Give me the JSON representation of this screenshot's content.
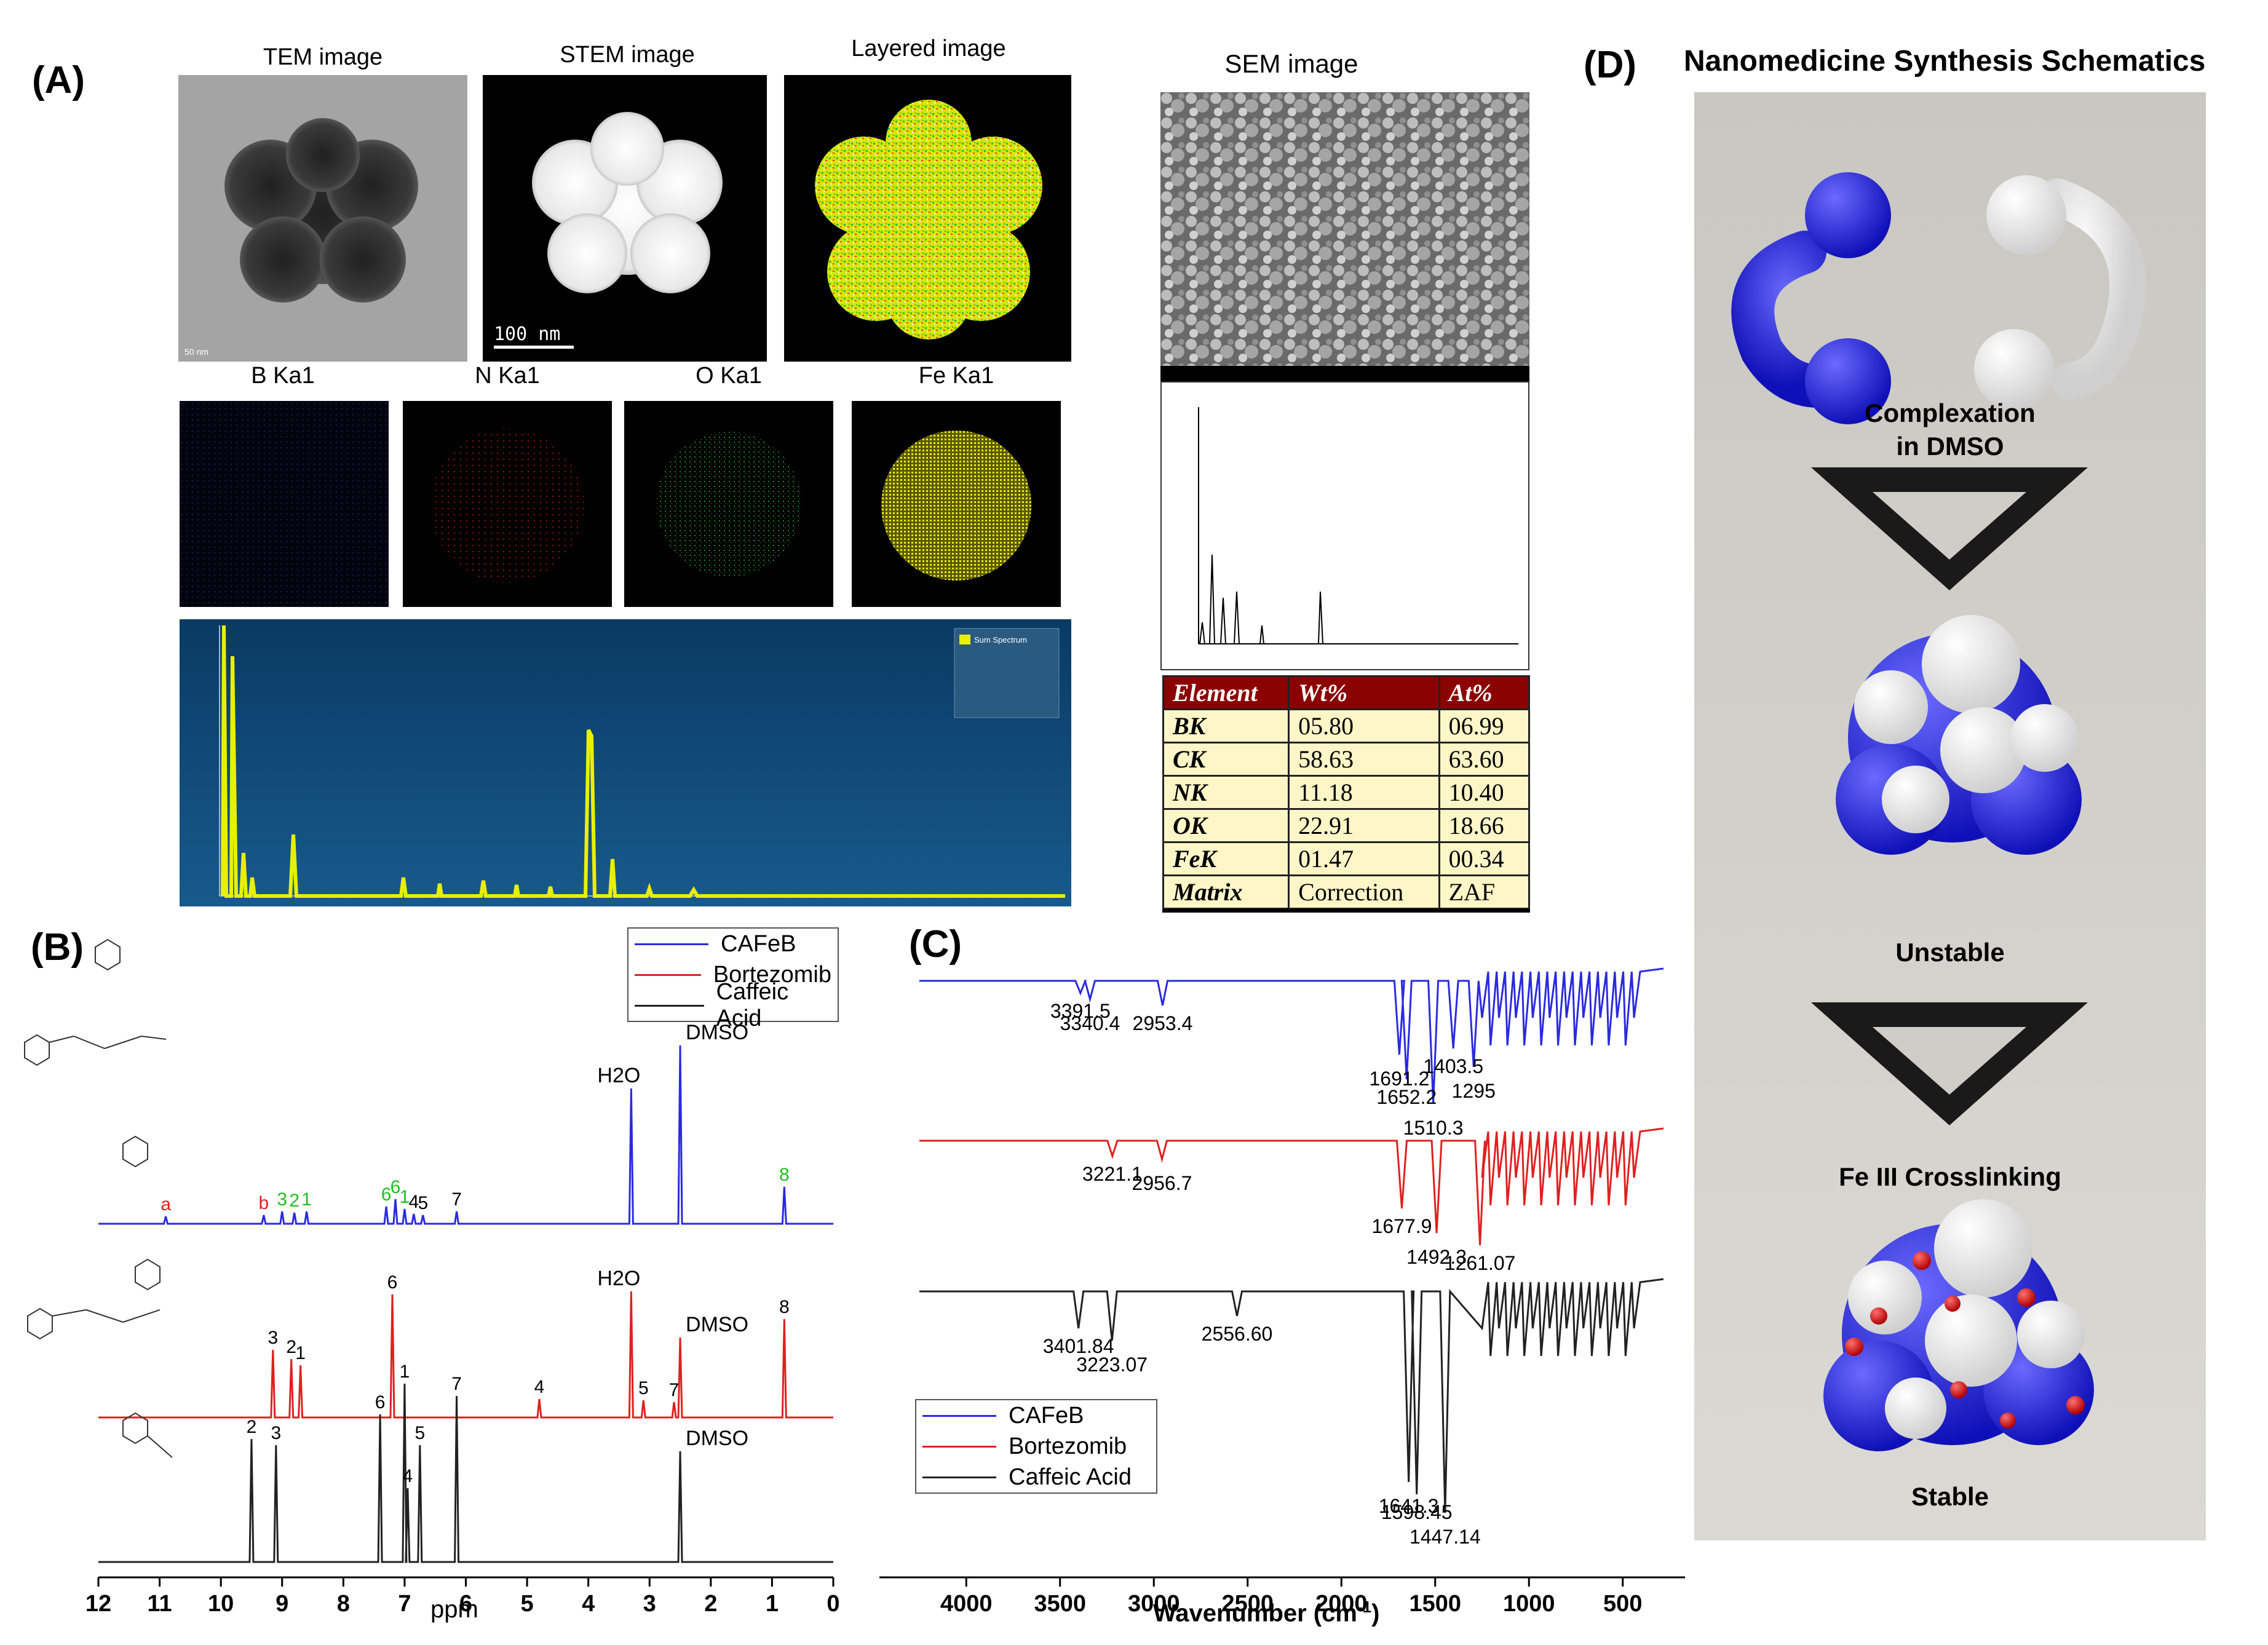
{
  "panels": {
    "A": "(A)",
    "B": "(B)",
    "C": "(C)",
    "D": "(D)"
  },
  "panelA": {
    "tem_title": "TEM image",
    "stem_title": "STEM image",
    "layered_title": "Layered image",
    "scale_bar": "100 nm",
    "map_titles": [
      "B Ka1",
      "N Ka1",
      "O Ka1",
      "Fe Ka1"
    ],
    "eds_legend": "Sum Spectrum"
  },
  "sem": {
    "title": "SEM image",
    "table_headers": [
      "Element",
      "Wt%",
      "At%"
    ],
    "rows": [
      {
        "el": "BK",
        "wt": "05.80",
        "at": "06.99"
      },
      {
        "el": "CK",
        "wt": "58.63",
        "at": "63.60"
      },
      {
        "el": "NK",
        "wt": "11.18",
        "at": "10.40"
      },
      {
        "el": "OK",
        "wt": "22.91",
        "at": "18.66"
      },
      {
        "el": "FeK",
        "wt": "01.47",
        "at": "00.34"
      },
      {
        "el": "Matrix",
        "wt": "Correction",
        "at": "ZAF"
      }
    ]
  },
  "panelD": {
    "title": "Nanomedicine Synthesis Schematics",
    "step1": "Complexation",
    "step1b": "in DMSO",
    "step2": "Unstable",
    "step3": "Fe III Crosslinking",
    "step4": "Stable"
  },
  "chart_data": [
    {
      "type": "line",
      "title": "",
      "xlabel": "ppm",
      "ylabel": "",
      "xlim": [
        12,
        0
      ],
      "x_ticks": [
        12,
        11,
        10,
        9,
        8,
        7,
        6,
        5,
        4,
        3,
        2,
        1,
        0
      ],
      "legend": [
        "CAFeB",
        "Bortezomib",
        "Caffeic  Acid"
      ],
      "series": [
        {
          "name": "CAFeB",
          "color": "#2a2ae0",
          "peaks": [
            {
              "x": 10.9,
              "label": "a"
            },
            {
              "x": 9.3,
              "label": "b"
            },
            {
              "x": 9.0,
              "label": "3"
            },
            {
              "x": 8.8,
              "label": "2"
            },
            {
              "x": 8.6,
              "label": "1"
            },
            {
              "x": 7.3,
              "label": "6"
            },
            {
              "x": 7.15,
              "label": "6"
            },
            {
              "x": 7.0,
              "label": "1"
            },
            {
              "x": 6.85,
              "label": "4"
            },
            {
              "x": 6.7,
              "label": "5"
            },
            {
              "x": 6.15,
              "label": "7"
            },
            {
              "x": 3.3,
              "label": "H2O"
            },
            {
              "x": 2.5,
              "label": "DMSO"
            },
            {
              "x": 0.8,
              "label": "8"
            }
          ]
        },
        {
          "name": "Bortezomib",
          "color": "#e02020",
          "peaks": [
            {
              "x": 9.15,
              "label": "3"
            },
            {
              "x": 8.85,
              "label": "2"
            },
            {
              "x": 8.7,
              "label": "1"
            },
            {
              "x": 7.2,
              "label": "6"
            },
            {
              "x": 4.8,
              "label": "4"
            },
            {
              "x": 3.3,
              "label": "H2O"
            },
            {
              "x": 3.1,
              "label": "5"
            },
            {
              "x": 2.6,
              "label": "7"
            },
            {
              "x": 2.5,
              "label": "DMSO"
            },
            {
              "x": 0.8,
              "label": "8"
            }
          ]
        },
        {
          "name": "Caffeic  Acid",
          "color": "#222222",
          "peaks": [
            {
              "x": 9.5,
              "label": "2"
            },
            {
              "x": 9.1,
              "label": "3"
            },
            {
              "x": 7.4,
              "label": "6"
            },
            {
              "x": 7.0,
              "label": "1"
            },
            {
              "x": 6.95,
              "label": "4"
            },
            {
              "x": 6.75,
              "label": "5"
            },
            {
              "x": 6.15,
              "label": "7"
            },
            {
              "x": 2.5,
              "label": "DMSO"
            }
          ]
        }
      ]
    },
    {
      "type": "line",
      "title": "",
      "xlabel": "Wavenumber (cm",
      "xlabel_sup": "-1",
      "xlabel_end": ")",
      "ylabel": "",
      "xlim": [
        4250,
        250
      ],
      "x_ticks": [
        4000,
        3500,
        3000,
        2500,
        2000,
        1500,
        1000,
        500
      ],
      "legend": [
        "CAFeB",
        "Bortezomib",
        "Caffeic  Acid"
      ],
      "series": [
        {
          "name": "CAFeB",
          "color": "#2a2ae0",
          "labels": [
            {
              "x": 3391.5,
              "text": "3391.5"
            },
            {
              "x": 3340.4,
              "text": "3340.4"
            },
            {
              "x": 2953.4,
              "text": "2953.4"
            },
            {
              "x": 1691.2,
              "text": "1691.2"
            },
            {
              "x": 1652.2,
              "text": "1652.2"
            },
            {
              "x": 1510.3,
              "text": "1510.3"
            },
            {
              "x": 1403.5,
              "text": "1403.5"
            },
            {
              "x": 1295,
              "text": "1295"
            }
          ]
        },
        {
          "name": "Bortezomib",
          "color": "#e02020",
          "labels": [
            {
              "x": 3221.1,
              "text": "3221.1"
            },
            {
              "x": 2956.7,
              "text": "2956.7"
            },
            {
              "x": 1677.9,
              "text": "1677.9"
            },
            {
              "x": 1492.3,
              "text": "1492.3"
            },
            {
              "x": 1261.07,
              "text": "1261.07"
            }
          ]
        },
        {
          "name": "Caffeic  Acid",
          "color": "#222222",
          "labels": [
            {
              "x": 3401.84,
              "text": "3401.84"
            },
            {
              "x": 3223.07,
              "text": "3223.07"
            },
            {
              "x": 2556.6,
              "text": "2556.60"
            },
            {
              "x": 1641.3,
              "text": "1641.3"
            },
            {
              "x": 1598.45,
              "text": "1598.45"
            },
            {
              "x": 1447.14,
              "text": "1447.14"
            }
          ]
        }
      ]
    }
  ]
}
